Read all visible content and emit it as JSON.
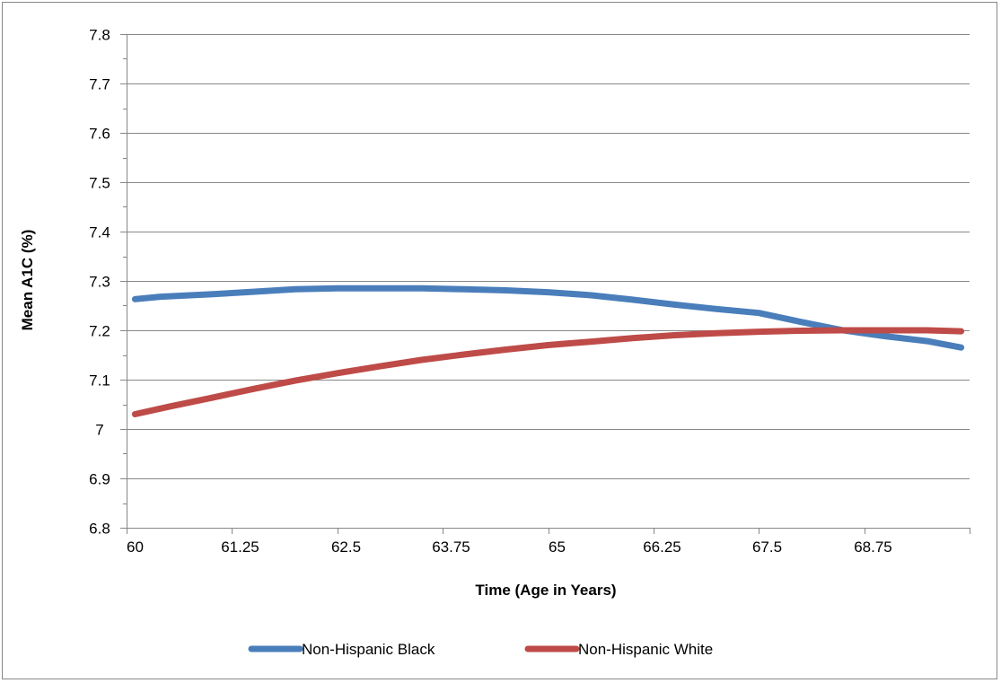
{
  "chart_data": {
    "type": "line",
    "xlabel": "Time (Age in Years)",
    "ylabel": "Mean A1C (%)",
    "xlim": [
      60,
      70
    ],
    "ylim": [
      6.8,
      7.8
    ],
    "x_ticks": [
      "60",
      "61.25",
      "62.5",
      "63.75",
      "65",
      "66.25",
      "67.5",
      "68.75"
    ],
    "y_ticks": [
      "6.8",
      "6.9",
      "7",
      "7.1",
      "7.2",
      "7.3",
      "7.4",
      "7.5",
      "7.6",
      "7.7",
      "7.8"
    ],
    "grid": "horizontal",
    "legend_position": "bottom",
    "series": [
      {
        "name": "Non-Hispanic Black",
        "color": "#4a7ebb",
        "x": [
          60.1,
          60.4,
          61.0,
          61.5,
          62.0,
          62.5,
          63.0,
          63.5,
          64.0,
          64.5,
          65.0,
          65.5,
          66.0,
          66.5,
          67.0,
          67.5,
          68.0,
          68.5,
          69.0,
          69.5,
          69.9
        ],
        "y": [
          7.263,
          7.268,
          7.273,
          7.278,
          7.283,
          7.285,
          7.285,
          7.285,
          7.283,
          7.281,
          7.277,
          7.271,
          7.262,
          7.252,
          7.243,
          7.235,
          7.217,
          7.2,
          7.188,
          7.178,
          7.165
        ]
      },
      {
        "name": "Non-Hispanic White",
        "color": "#be4b48",
        "x": [
          60.1,
          60.5,
          61.0,
          61.5,
          62.0,
          62.5,
          63.0,
          63.5,
          64.0,
          64.5,
          65.0,
          65.5,
          66.0,
          66.5,
          67.0,
          67.5,
          68.0,
          68.5,
          69.0,
          69.5,
          69.9
        ],
        "y": [
          7.03,
          7.045,
          7.063,
          7.081,
          7.098,
          7.113,
          7.127,
          7.14,
          7.151,
          7.161,
          7.17,
          7.177,
          7.184,
          7.19,
          7.194,
          7.197,
          7.199,
          7.2,
          7.2,
          7.2,
          7.198
        ]
      }
    ]
  }
}
